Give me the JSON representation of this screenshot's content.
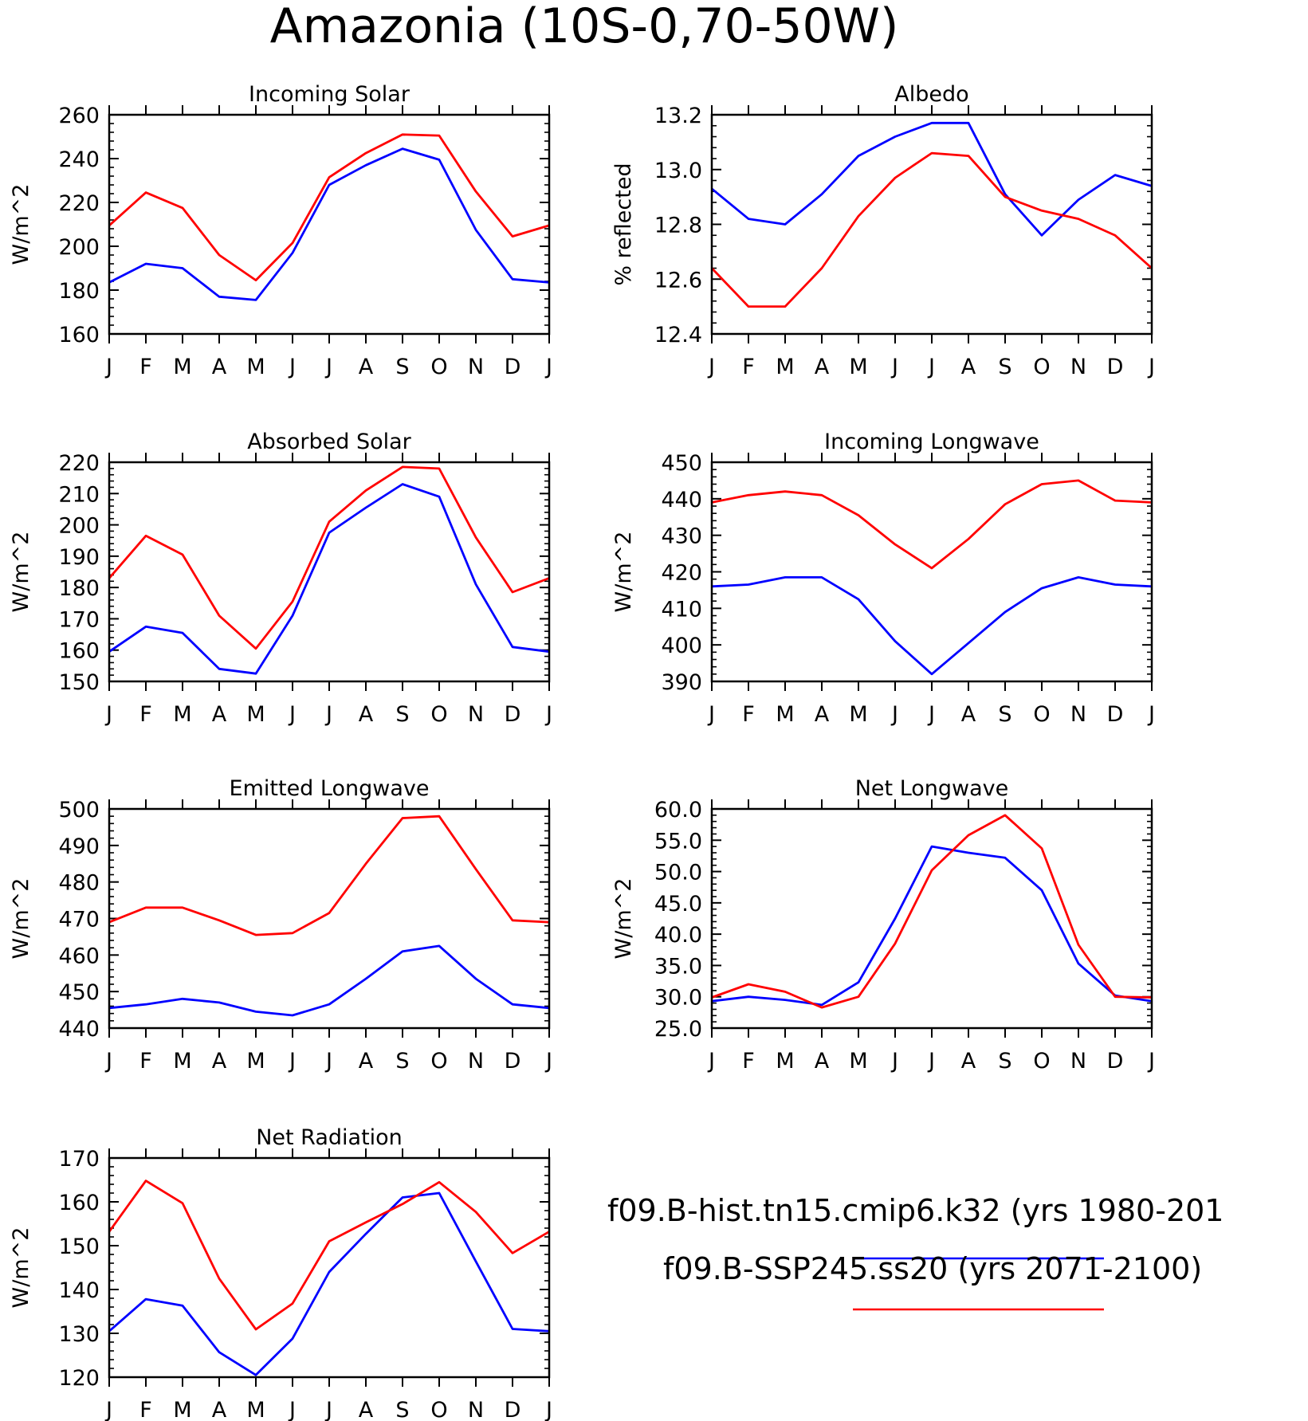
{
  "title": "Amazonia (10S-0,70-50W)",
  "legend": [
    {
      "label": "f09.B-hist.tn15.cmip6.k32 (yrs 1980-201",
      "color": "#0000ff"
    },
    {
      "label": "f09.B-SSP245.ss20 (yrs 2071-2100)",
      "color": "#ff0000"
    }
  ],
  "chart_data": [
    {
      "type": "line",
      "title": "Incoming Solar",
      "ylabel": "W/m^2",
      "ylim": [
        160,
        260
      ],
      "yticks": [
        160,
        180,
        200,
        220,
        240,
        260
      ],
      "ytick_labels": [
        "160",
        "180",
        "200",
        "220",
        "240",
        "260"
      ],
      "categories": [
        "J",
        "F",
        "M",
        "A",
        "M",
        "J",
        "J",
        "A",
        "S",
        "O",
        "N",
        "D",
        "J"
      ],
      "series": [
        {
          "name": "f09.B-hist.tn15.cmip6.k32 (yrs 1980-201",
          "color": "#0000ff",
          "values": [
            183.5,
            192,
            190,
            177,
            175.5,
            197,
            228,
            237,
            244.5,
            239.5,
            207.5,
            185,
            183.5
          ]
        },
        {
          "name": "f09.B-SSP245.ss20 (yrs 2071-2100)",
          "color": "#ff0000",
          "values": [
            209.5,
            224.5,
            217.5,
            196,
            184.5,
            201.5,
            231.5,
            242.5,
            251,
            250.5,
            225,
            204.5,
            209.5
          ]
        }
      ]
    },
    {
      "type": "line",
      "title": "Albedo",
      "ylabel": "% reflected",
      "ylim": [
        12.4,
        13.2
      ],
      "yticks": [
        12.4,
        12.6,
        12.8,
        13.0,
        13.2
      ],
      "ytick_labels": [
        "12.4",
        "12.6",
        "12.8",
        "13.0",
        "13.2"
      ],
      "categories": [
        "J",
        "F",
        "M",
        "A",
        "M",
        "J",
        "J",
        "A",
        "S",
        "O",
        "N",
        "D",
        "J"
      ],
      "series": [
        {
          "name": "f09.B-hist.tn15.cmip6.k32 (yrs 1980-201",
          "color": "#0000ff",
          "values": [
            12.93,
            12.82,
            12.8,
            12.91,
            13.05,
            13.12,
            13.17,
            13.17,
            12.91,
            12.76,
            12.89,
            12.98,
            12.94
          ]
        },
        {
          "name": "f09.B-SSP245.ss20 (yrs 2071-2100)",
          "color": "#ff0000",
          "values": [
            12.64,
            12.5,
            12.5,
            12.64,
            12.83,
            12.97,
            13.06,
            13.05,
            12.9,
            12.85,
            12.82,
            12.76,
            12.64
          ]
        }
      ]
    },
    {
      "type": "line",
      "title": "Absorbed Solar",
      "ylabel": "W/m^2",
      "ylim": [
        150,
        220
      ],
      "yticks": [
        150,
        160,
        170,
        180,
        190,
        200,
        210,
        220
      ],
      "ytick_labels": [
        "150",
        "160",
        "170",
        "180",
        "190",
        "200",
        "210",
        "220"
      ],
      "categories": [
        "J",
        "F",
        "M",
        "A",
        "M",
        "J",
        "J",
        "A",
        "S",
        "O",
        "N",
        "D",
        "J"
      ],
      "series": [
        {
          "name": "f09.B-hist.tn15.cmip6.k32 (yrs 1980-201",
          "color": "#0000ff",
          "values": [
            159.5,
            167.5,
            165.5,
            154,
            152.5,
            171,
            197.5,
            205.5,
            213,
            209,
            181,
            161,
            159.5
          ]
        },
        {
          "name": "f09.B-SSP245.ss20 (yrs 2071-2100)",
          "color": "#ff0000",
          "values": [
            183,
            196.5,
            190.5,
            171,
            160.5,
            175.5,
            201,
            211,
            218.5,
            218,
            196,
            178.5,
            183
          ]
        }
      ]
    },
    {
      "type": "line",
      "title": "Incoming Longwave",
      "ylabel": "W/m^2",
      "ylim": [
        390,
        450
      ],
      "yticks": [
        390,
        400,
        410,
        420,
        430,
        440,
        450
      ],
      "ytick_labels": [
        "390",
        "400",
        "410",
        "420",
        "430",
        "440",
        "450"
      ],
      "categories": [
        "J",
        "F",
        "M",
        "A",
        "M",
        "J",
        "J",
        "A",
        "S",
        "O",
        "N",
        "D",
        "J"
      ],
      "series": [
        {
          "name": "f09.B-hist.tn15.cmip6.k32 (yrs 1980-201",
          "color": "#0000ff",
          "values": [
            416,
            416.5,
            418.5,
            418.5,
            412.5,
            401,
            392,
            400.5,
            409,
            415.5,
            418.5,
            416.5,
            416
          ]
        },
        {
          "name": "f09.B-SSP245.ss20 (yrs 2071-2100)",
          "color": "#ff0000",
          "values": [
            439,
            441,
            442,
            441,
            435.5,
            427.5,
            421,
            429,
            438.5,
            444,
            445,
            439.5,
            439
          ]
        }
      ]
    },
    {
      "type": "line",
      "title": "Emitted Longwave",
      "ylabel": "W/m^2",
      "ylim": [
        440,
        500
      ],
      "yticks": [
        440,
        450,
        460,
        470,
        480,
        490,
        500
      ],
      "ytick_labels": [
        "440",
        "450",
        "460",
        "470",
        "480",
        "490",
        "500"
      ],
      "categories": [
        "J",
        "F",
        "M",
        "A",
        "M",
        "J",
        "J",
        "A",
        "S",
        "O",
        "N",
        "D",
        "J"
      ],
      "series": [
        {
          "name": "f09.B-hist.tn15.cmip6.k32 (yrs 1980-201",
          "color": "#0000ff",
          "values": [
            445.5,
            446.5,
            448,
            447,
            444.5,
            443.5,
            446.5,
            453.5,
            461,
            462.5,
            453.5,
            446.5,
            445.5
          ]
        },
        {
          "name": "f09.B-SSP245.ss20 (yrs 2071-2100)",
          "color": "#ff0000",
          "values": [
            469,
            473,
            473,
            469.5,
            465.5,
            466,
            471.5,
            485,
            497.5,
            498,
            483.5,
            469.5,
            469
          ]
        }
      ]
    },
    {
      "type": "line",
      "title": "Net Longwave",
      "ylabel": "W/m^2",
      "ylim": [
        25,
        60
      ],
      "yticks": [
        25,
        30,
        35,
        40,
        45,
        50,
        55,
        60
      ],
      "ytick_labels": [
        "25.0",
        "30.0",
        "35.0",
        "40.0",
        "45.0",
        "50.0",
        "55.0",
        "60.0"
      ],
      "categories": [
        "J",
        "F",
        "M",
        "A",
        "M",
        "J",
        "J",
        "A",
        "S",
        "O",
        "N",
        "D",
        "J"
      ],
      "series": [
        {
          "name": "f09.B-hist.tn15.cmip6.k32 (yrs 1980-201",
          "color": "#0000ff",
          "values": [
            29.3,
            30,
            29.5,
            28.7,
            32.3,
            42.5,
            54,
            53,
            52.2,
            47,
            35.3,
            30.2,
            29.3
          ]
        },
        {
          "name": "f09.B-SSP245.ss20 (yrs 2071-2100)",
          "color": "#ff0000",
          "values": [
            29.9,
            32,
            30.8,
            28.3,
            30,
            38.5,
            50.2,
            55.8,
            59,
            53.7,
            38.3,
            30,
            29.9
          ]
        }
      ]
    },
    {
      "type": "line",
      "title": "Net Radiation",
      "ylabel": "W/m^2",
      "ylim": [
        120,
        170
      ],
      "yticks": [
        120,
        130,
        140,
        150,
        160,
        170
      ],
      "ytick_labels": [
        "120",
        "130",
        "140",
        "150",
        "160",
        "170"
      ],
      "categories": [
        "J",
        "F",
        "M",
        "A",
        "M",
        "J",
        "J",
        "A",
        "S",
        "O",
        "N",
        "D",
        "J"
      ],
      "series": [
        {
          "name": "f09.B-hist.tn15.cmip6.k32 (yrs 1980-201",
          "color": "#0000ff",
          "values": [
            130.5,
            137.8,
            136.3,
            125.7,
            120.5,
            128.8,
            144,
            152.7,
            161,
            162,
            146.4,
            131,
            130.5
          ]
        },
        {
          "name": "f09.B-SSP245.ss20 (yrs 2071-2100)",
          "color": "#ff0000",
          "values": [
            153.2,
            164.8,
            159.7,
            142.5,
            130.9,
            136.8,
            151,
            155.3,
            159.5,
            164.5,
            157.7,
            148.3,
            153.2
          ]
        }
      ]
    }
  ]
}
